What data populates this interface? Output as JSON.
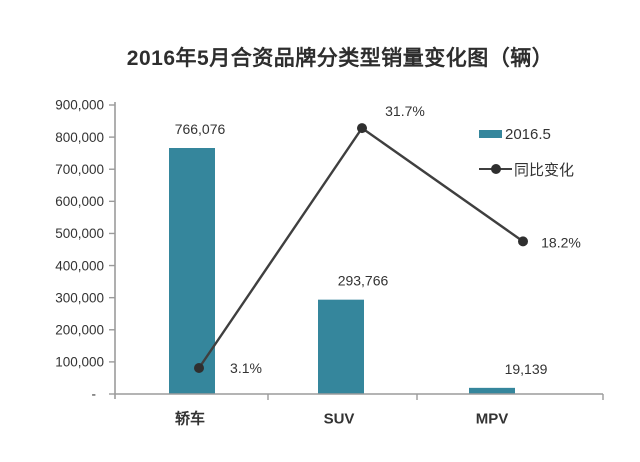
{
  "chart_data": {
    "type": "combo-bar-line",
    "title": "2016年5月合资品牌分类型销量变化图（辆）",
    "categories": [
      "轿车",
      "SUV",
      "MPV"
    ],
    "category_keys": [
      "sedan",
      "suv",
      "mpv"
    ],
    "series": [
      {
        "name": "2016.5",
        "type": "bar",
        "axis": "primary-left",
        "values": [
          766076,
          293766,
          19139
        ],
        "value_labels": [
          "766,076",
          "293,766",
          "19,139"
        ],
        "color": "#35869C"
      },
      {
        "name": "同比变化",
        "type": "line",
        "axis": "secondary-hidden",
        "values_percent": [
          3.1,
          31.7,
          18.2
        ],
        "value_labels": [
          "3.1%",
          "31.7%",
          "18.2%"
        ],
        "color": "#3F3F3F"
      }
    ],
    "y_axis": {
      "min": 0,
      "max": 900000,
      "step": 100000,
      "zero_label": "-",
      "tick_labels": [
        "-",
        "100,000",
        "200,000",
        "300,000",
        "400,000",
        "500,000",
        "600,000",
        "700,000",
        "800,000",
        "900,000"
      ]
    },
    "legend": {
      "position": "right",
      "entries": [
        "2016.5",
        "同比变化"
      ]
    },
    "grid": "off"
  },
  "colors": {
    "bar": "#35869C",
    "line": "#3F3F3F",
    "dot": "#2F2F2F",
    "axis": "#9B9B9B",
    "text": "#333333",
    "title": "#2E2E2E"
  }
}
